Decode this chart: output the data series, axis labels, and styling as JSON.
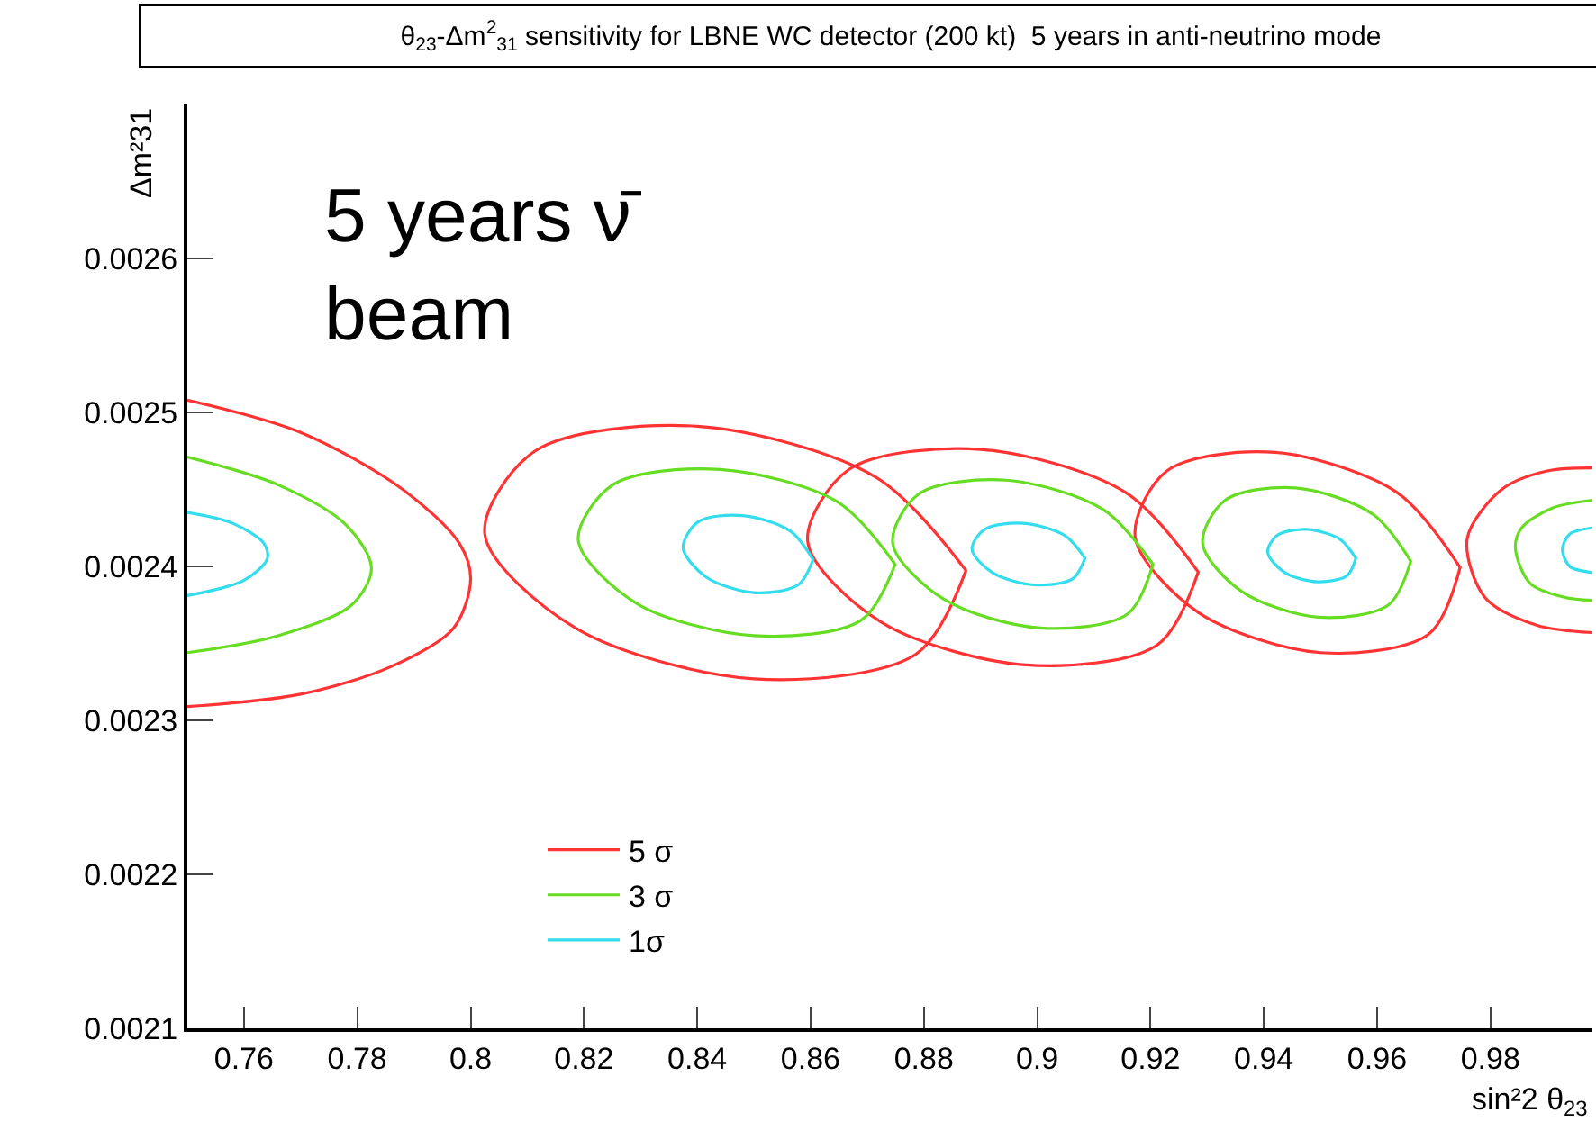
{
  "chart_data": {
    "type": "line",
    "title": "θ$_{23}$-Δm$^{2}$$_{31}$ sensitivity for LBNE WC detector (200 kt)  5 years in anti-neutrino mode",
    "xlabel": "sin²2 θ$_{23}$",
    "ylabel": "Δm²31",
    "annotations": [
      "5 years ν̄\nbeam"
    ],
    "xlim": [
      0.75,
      0.998
    ],
    "xticks": [
      0.76,
      0.78,
      0.8,
      0.82,
      0.84,
      0.86,
      0.88,
      0.9,
      0.92,
      0.94,
      0.96,
      0.98
    ],
    "ylim": [
      0.0021,
      0.0027
    ],
    "yticks": [
      0.0021,
      0.0022,
      0.0023,
      0.0024,
      0.0025,
      0.0026
    ],
    "grid": false,
    "legend": "bottom left",
    "marker": "none",
    "line_style": "solid",
    "series": [
      {
        "name": "5 σ",
        "color": "#ff3333",
        "x": [
          0.75,
          0.77,
          0.788,
          0.798,
          0.8,
          0.797,
          0.786,
          0.77,
          0.75,
          null,
          0.8875,
          0.8715,
          0.84,
          0.8114,
          0.8025,
          0.8185,
          0.85,
          0.8786,
          0.8875,
          null,
          0.9285,
          0.9156,
          0.89,
          0.8668,
          0.8595,
          0.8724,
          0.898,
          0.9212,
          0.9285,
          null,
          0.9747,
          0.9635,
          0.942,
          0.9229,
          0.9173,
          0.9285,
          0.95,
          0.9691,
          0.9747,
          null,
          0.998,
          0.99,
          0.982,
          0.9759,
          0.979,
          0.988,
          0.998
        ],
        "values": [
          0.002508,
          0.002487,
          0.00245,
          0.002415,
          0.002392,
          0.00236,
          0.002335,
          0.002317,
          0.002309,
          null,
          0.002397,
          0.002458,
          0.002491,
          0.002475,
          0.002421,
          0.00236,
          0.002327,
          0.002343,
          0.002398,
          null,
          0.002396,
          0.002448,
          0.002476,
          0.002463,
          0.002416,
          0.002364,
          0.002336,
          0.002349,
          0.002397,
          null,
          0.002399,
          0.002448,
          0.002474,
          0.002462,
          0.002419,
          0.00237,
          0.002344,
          0.002356,
          0.0024,
          null,
          0.002464,
          0.002462,
          0.00245,
          0.002418,
          0.00238,
          0.002362,
          0.002357
        ]
      },
      {
        "name": "3 σ",
        "color": "#66dd22",
        "x": [
          0.75,
          0.766,
          0.778,
          0.7825,
          0.779,
          0.766,
          0.75,
          null,
          0.875,
          0.8647,
          0.844,
          0.8251,
          0.819,
          0.8293,
          0.85,
          0.8689,
          0.875,
          null,
          0.9205,
          0.9116,
          0.8945,
          0.8791,
          0.8745,
          0.8834,
          0.9005,
          0.9159,
          0.9205,
          null,
          0.966,
          0.9592,
          0.9456,
          0.9332,
          0.9292,
          0.936,
          0.9496,
          0.962,
          0.966,
          null,
          0.998,
          0.991,
          0.9855,
          0.9844,
          0.987,
          0.993,
          0.998
        ],
        "values": [
          0.002471,
          0.002453,
          0.002427,
          0.002399,
          0.002375,
          0.002355,
          0.002344,
          null,
          0.002401,
          0.002442,
          0.002463,
          0.002453,
          0.002417,
          0.002376,
          0.002355,
          0.002365,
          0.002402,
          null,
          0.002401,
          0.002437,
          0.002456,
          0.002447,
          0.002415,
          0.002379,
          0.00236,
          0.002369,
          0.002402,
          null,
          0.002403,
          0.002434,
          0.002451,
          0.002443,
          0.002415,
          0.002384,
          0.002367,
          0.002375,
          0.002404,
          null,
          0.002443,
          0.002438,
          0.002425,
          0.002412,
          0.002389,
          0.00238,
          0.002378
        ]
      },
      {
        "name": "1σ",
        "color": "#33ddee",
        "x": [
          0.75,
          0.758,
          0.7635,
          0.7641,
          0.76,
          0.75,
          null,
          0.8605,
          0.8564,
          0.848,
          0.8402,
          0.8375,
          0.8416,
          0.85,
          0.8578,
          0.8605,
          null,
          0.9085,
          0.9049,
          0.8975,
          0.8907,
          0.8885,
          0.8921,
          0.8995,
          0.9063,
          0.9085,
          null,
          0.9563,
          0.9533,
          0.9475,
          0.9423,
          0.9407,
          0.9437,
          0.9495,
          0.9547,
          0.9563,
          null,
          0.998,
          0.994,
          0.9927,
          0.994,
          0.998
        ],
        "values": [
          0.002435,
          0.002428,
          0.002415,
          0.002405,
          0.002391,
          0.002381,
          null,
          0.002404,
          0.002423,
          0.002433,
          0.002429,
          0.002412,
          0.002393,
          0.002383,
          0.002388,
          0.002405,
          null,
          0.002405,
          0.00242,
          0.002428,
          0.002424,
          0.002411,
          0.002396,
          0.002388,
          0.002392,
          0.002406,
          null,
          0.002405,
          0.002418,
          0.002424,
          0.00242,
          0.002409,
          0.002396,
          0.00239,
          0.002394,
          0.002406,
          null,
          0.002425,
          0.002421,
          0.002411,
          0.0024,
          0.002396
        ]
      }
    ]
  }
}
